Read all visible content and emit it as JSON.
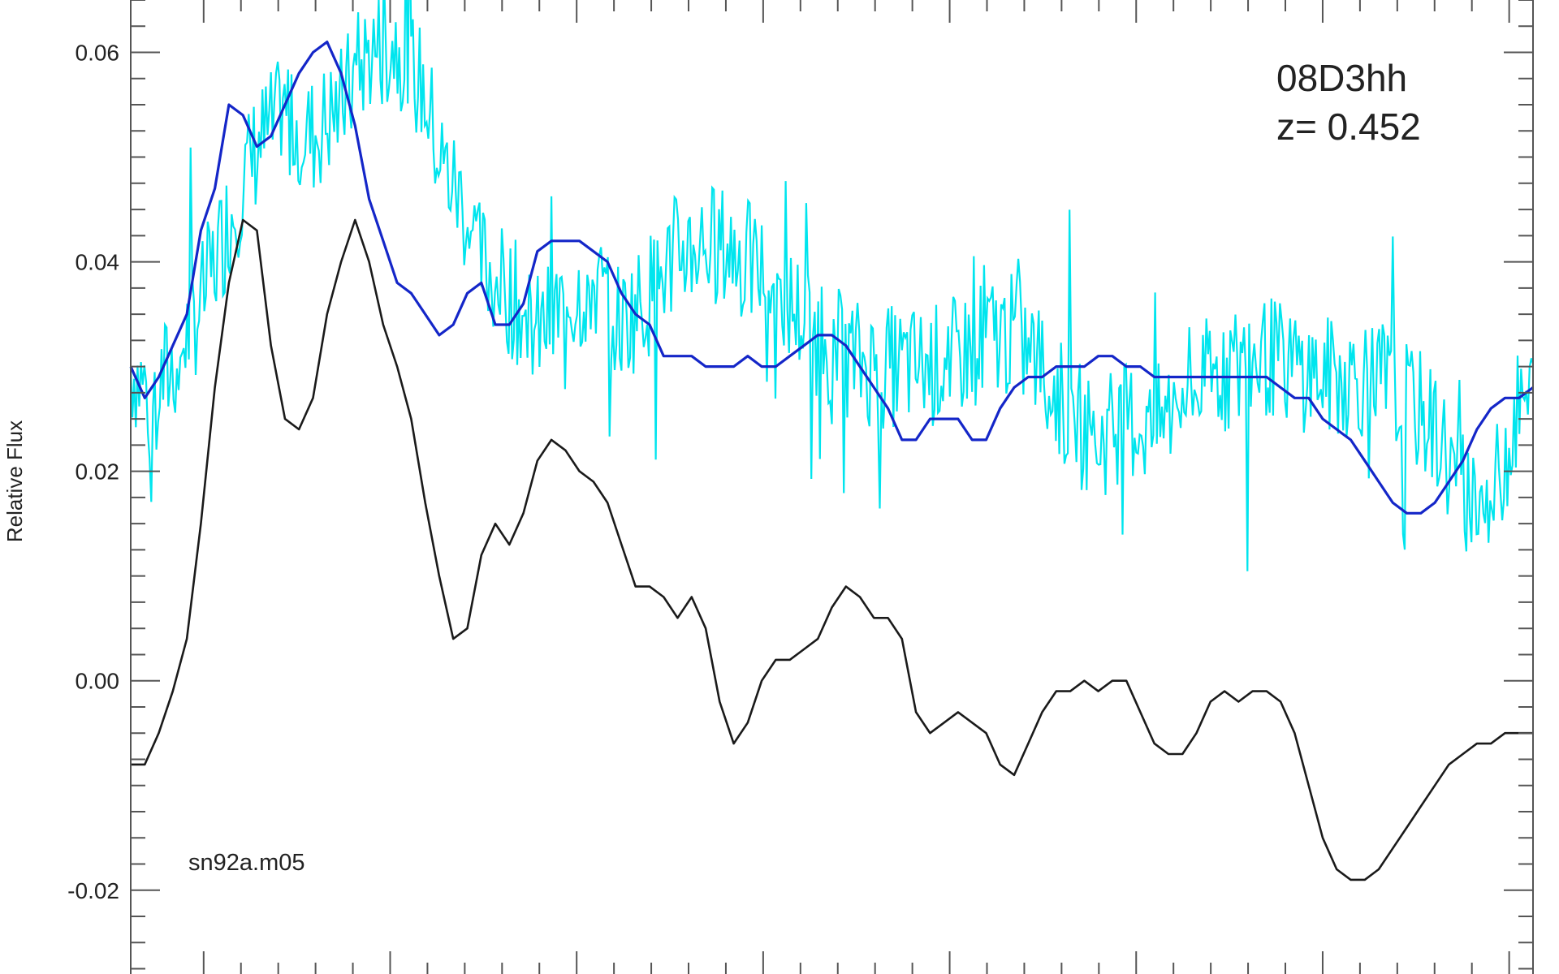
{
  "chart_data": {
    "type": "line",
    "ylabel": "Relative Flux",
    "xlabel": "",
    "ylim": [
      -0.028,
      0.065
    ],
    "xlim": [
      0,
      100
    ],
    "yticks": [
      -0.02,
      0.0,
      0.02,
      0.04,
      0.06
    ],
    "ytick_labels": [
      "-0.02",
      "0.00",
      "0.02",
      "0.04",
      "0.06"
    ],
    "annotations": {
      "object_name": "08D3hh",
      "redshift": "z= 0.452",
      "template_name": "sn92a.m05"
    },
    "series": [
      {
        "role": "observed-raw",
        "color": "#00e5ee",
        "x": [
          0,
          1.5,
          3,
          5,
          7,
          9,
          11,
          13,
          15,
          17,
          19,
          21,
          22,
          23.5,
          25,
          27,
          29,
          31,
          33,
          35,
          37,
          39,
          41,
          43,
          45,
          47,
          49,
          51,
          53,
          55,
          57,
          59,
          61,
          63,
          65,
          67,
          69,
          71,
          73,
          75,
          77,
          79,
          81,
          83,
          85,
          87,
          89,
          91,
          93,
          95,
          97,
          99,
          100
        ],
        "values": [
          0.03,
          0.027,
          0.03,
          0.036,
          0.044,
          0.051,
          0.054,
          0.052,
          0.055,
          0.06,
          0.061,
          0.056,
          0.05,
          0.046,
          0.04,
          0.037,
          0.033,
          0.036,
          0.038,
          0.034,
          0.037,
          0.041,
          0.042,
          0.041,
          0.039,
          0.036,
          0.033,
          0.031,
          0.03,
          0.03,
          0.03,
          0.031,
          0.033,
          0.033,
          0.03,
          0.025,
          0.023,
          0.025,
          0.024,
          0.027,
          0.029,
          0.03,
          0.031,
          0.03,
          0.029,
          0.029,
          0.029,
          0.027,
          0.024,
          0.018,
          0.017,
          0.026,
          0.027
        ]
      },
      {
        "role": "observed-smoothed",
        "color": "#1426c8",
        "x": [
          0,
          1,
          2,
          3,
          4,
          5,
          6,
          7,
          8,
          9,
          10,
          11,
          12,
          13,
          14,
          15,
          16,
          17,
          18,
          19,
          20,
          21,
          22,
          23,
          24,
          25,
          26,
          27,
          28,
          29,
          30,
          31,
          32,
          33,
          34,
          35,
          36,
          37,
          38,
          39,
          40,
          41,
          42,
          43,
          44,
          45,
          46,
          47,
          48,
          49,
          50,
          51,
          52,
          53,
          54,
          55,
          56,
          57,
          58,
          59,
          60,
          61,
          62,
          63,
          64,
          65,
          66,
          67,
          68,
          69,
          70,
          71,
          72,
          73,
          74,
          75,
          76,
          77,
          78,
          79,
          80,
          81,
          82,
          83,
          84,
          85,
          86,
          87,
          88,
          89,
          90,
          91,
          92,
          93,
          94,
          95,
          96,
          97,
          98,
          99,
          100
        ],
        "values": [
          0.03,
          0.027,
          0.029,
          0.032,
          0.035,
          0.043,
          0.047,
          0.055,
          0.054,
          0.051,
          0.052,
          0.055,
          0.058,
          0.06,
          0.061,
          0.058,
          0.053,
          0.046,
          0.042,
          0.038,
          0.037,
          0.035,
          0.033,
          0.034,
          0.037,
          0.038,
          0.034,
          0.034,
          0.036,
          0.041,
          0.042,
          0.042,
          0.042,
          0.041,
          0.04,
          0.037,
          0.035,
          0.034,
          0.031,
          0.031,
          0.031,
          0.03,
          0.03,
          0.03,
          0.031,
          0.03,
          0.03,
          0.031,
          0.032,
          0.033,
          0.033,
          0.032,
          0.03,
          0.028,
          0.026,
          0.023,
          0.023,
          0.025,
          0.025,
          0.025,
          0.023,
          0.023,
          0.026,
          0.028,
          0.029,
          0.029,
          0.03,
          0.03,
          0.03,
          0.031,
          0.031,
          0.03,
          0.03,
          0.029,
          0.029,
          0.029,
          0.029,
          0.029,
          0.029,
          0.029,
          0.029,
          0.029,
          0.028,
          0.027,
          0.027,
          0.025,
          0.024,
          0.023,
          0.021,
          0.019,
          0.017,
          0.016,
          0.016,
          0.017,
          0.019,
          0.021,
          0.024,
          0.026,
          0.027,
          0.027,
          0.028
        ]
      },
      {
        "role": "template",
        "color": "#1a1a1a",
        "x": [
          0,
          1,
          2,
          3,
          4,
          5,
          6,
          7,
          8,
          9,
          10,
          11,
          12,
          13,
          14,
          15,
          16,
          17,
          18,
          19,
          20,
          21,
          22,
          23,
          24,
          25,
          26,
          27,
          28,
          29,
          30,
          31,
          32,
          33,
          34,
          35,
          36,
          37,
          38,
          39,
          40,
          41,
          42,
          43,
          44,
          45,
          46,
          47,
          48,
          49,
          50,
          51,
          52,
          53,
          54,
          55,
          56,
          57,
          58,
          59,
          60,
          61,
          62,
          63,
          64,
          65,
          66,
          67,
          68,
          69,
          70,
          71,
          72,
          73,
          74,
          75,
          76,
          77,
          78,
          79,
          80,
          81,
          82,
          83,
          84,
          85,
          86,
          87,
          88,
          89,
          90,
          91,
          92,
          93,
          94,
          95,
          96,
          97,
          98,
          99,
          100
        ],
        "values": [
          -0.008,
          -0.008,
          -0.005,
          -0.001,
          0.004,
          0.015,
          0.028,
          0.038,
          0.044,
          0.043,
          0.032,
          0.025,
          0.024,
          0.027,
          0.035,
          0.04,
          0.044,
          0.04,
          0.034,
          0.03,
          0.025,
          0.017,
          0.01,
          0.004,
          0.005,
          0.012,
          0.015,
          0.013,
          0.016,
          0.021,
          0.023,
          0.022,
          0.02,
          0.019,
          0.017,
          0.013,
          0.009,
          0.009,
          0.008,
          0.006,
          0.008,
          0.005,
          -0.002,
          -0.006,
          -0.004,
          0.0,
          0.002,
          0.002,
          0.003,
          0.004,
          0.007,
          0.009,
          0.008,
          0.006,
          0.006,
          0.004,
          -0.003,
          -0.005,
          -0.004,
          -0.003,
          -0.004,
          -0.005,
          -0.008,
          -0.009,
          -0.006,
          -0.003,
          -0.001,
          -0.001,
          0.0,
          -0.001,
          0.0,
          0.0,
          -0.003,
          -0.006,
          -0.007,
          -0.007,
          -0.005,
          -0.002,
          -0.001,
          -0.002,
          -0.001,
          -0.001,
          -0.002,
          -0.005,
          -0.01,
          -0.015,
          -0.018,
          -0.019,
          -0.019,
          -0.018,
          -0.016,
          -0.014,
          -0.012,
          -0.01,
          -0.008,
          -0.007,
          -0.006,
          -0.006,
          -0.005,
          -0.005,
          -0.005
        ]
      }
    ],
    "grid": false
  }
}
